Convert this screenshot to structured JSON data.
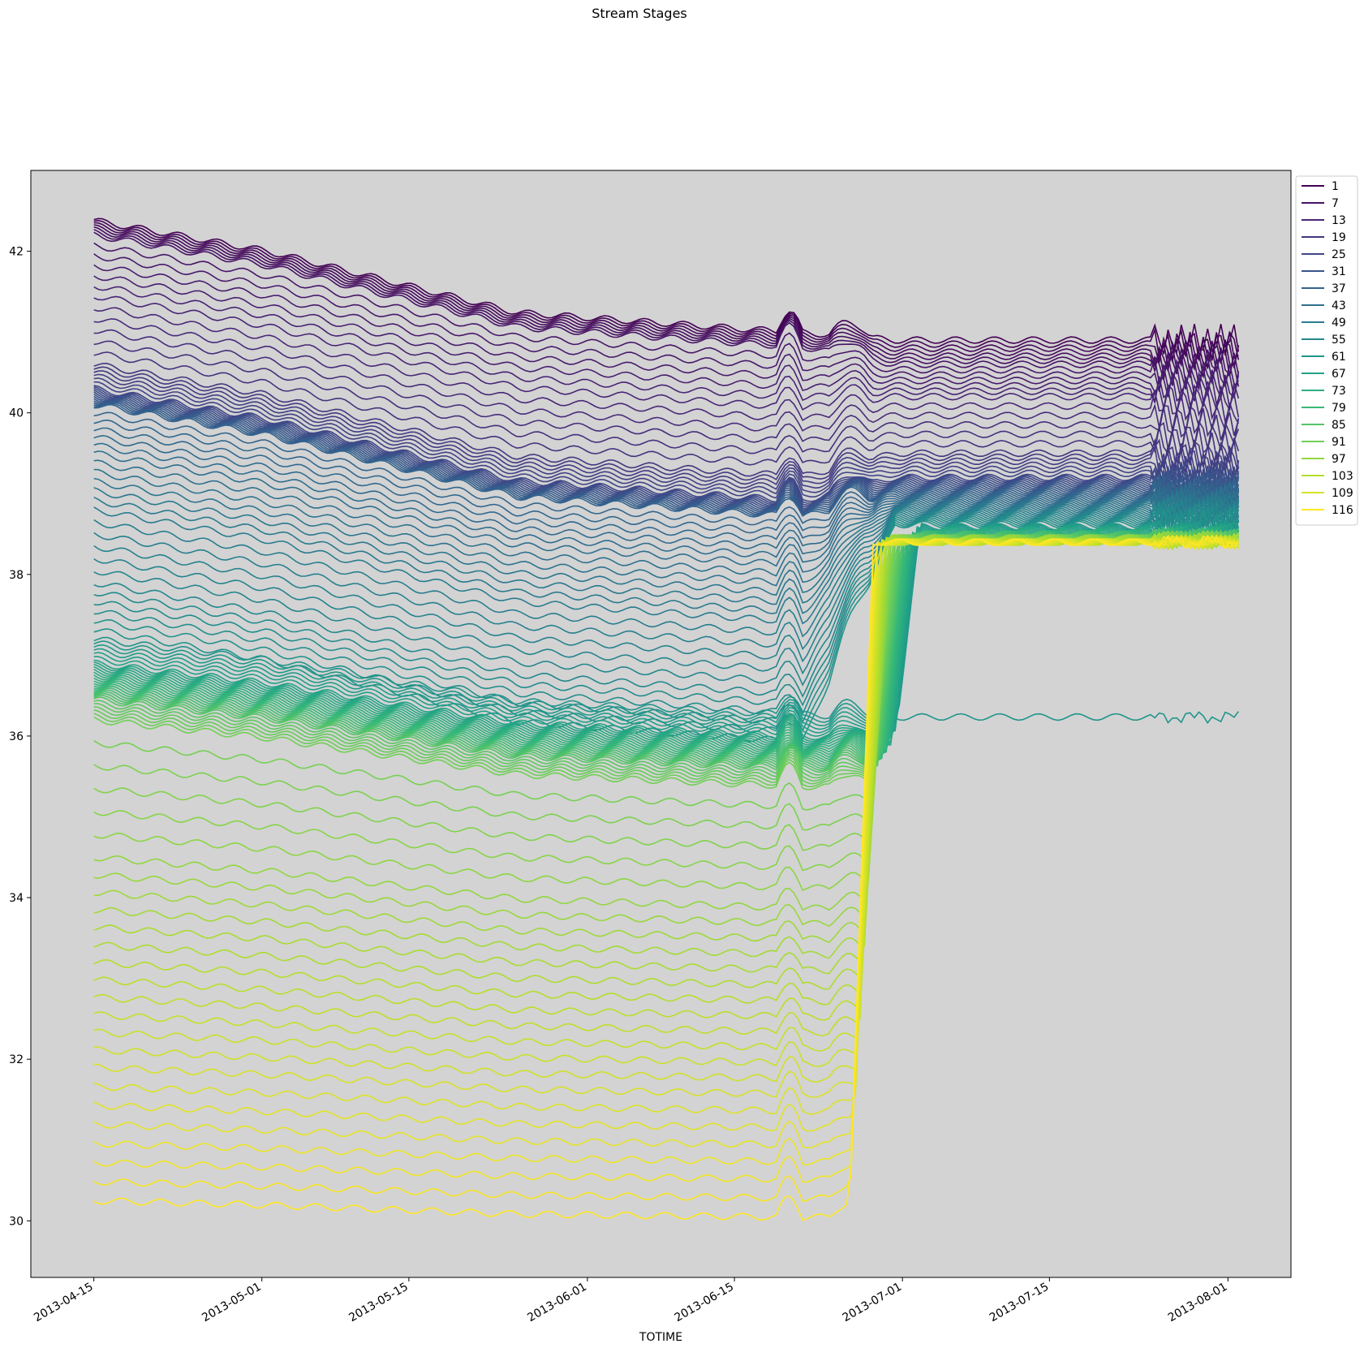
{
  "chart_data": {
    "type": "line",
    "title": "Stream Stages",
    "xlabel": "TOTIME",
    "ylabel": "",
    "x_ticks": [
      "2013-04-15",
      "2013-05-01",
      "2013-05-15",
      "2013-06-01",
      "2013-06-15",
      "2013-07-01",
      "2013-07-15",
      "2013-08-01"
    ],
    "x_range": [
      "2013-04-09",
      "2013-08-07"
    ],
    "y_ticks": [
      30,
      32,
      34,
      36,
      38,
      40,
      42
    ],
    "ylim": [
      29.3,
      43.0
    ],
    "grid": false,
    "plot_background": "#d3d3d3",
    "colormap": "viridis",
    "legend": {
      "placement": "outside top-right",
      "entries": [
        "1",
        "7",
        "13",
        "19",
        "25",
        "31",
        "37",
        "43",
        "49",
        "55",
        "61",
        "67",
        "73",
        "79",
        "85",
        "91",
        "97",
        "103",
        "109",
        "116"
      ]
    },
    "series_count": 116,
    "series_start_date": "2013-04-15",
    "series_end_date": "2013-08-02",
    "series": [
      {
        "name": "1",
        "start": 42.38,
        "end": 40.9
      },
      {
        "name": "7",
        "start": 42.2,
        "end": 40.6
      },
      {
        "name": "13",
        "start": 41.45,
        "end": 40.2
      },
      {
        "name": "19",
        "start": 40.6,
        "end": 39.5
      },
      {
        "name": "25",
        "start": 40.3,
        "end": 39.2
      },
      {
        "name": "31",
        "start": 40.2,
        "end": 39.1
      },
      {
        "name": "37",
        "start": 40.1,
        "end": 39.0
      },
      {
        "name": "43",
        "start": 39.5,
        "end": 38.9
      },
      {
        "name": "49",
        "start": 38.8,
        "end": 38.8
      },
      {
        "name": "55",
        "start": 37.9,
        "end": 38.7
      },
      {
        "name": "61",
        "start": 37.2,
        "end": 38.6
      },
      {
        "name": "67",
        "start": 36.9,
        "end": 38.55
      },
      {
        "name": "73",
        "start": 36.75,
        "end": 38.5
      },
      {
        "name": "79",
        "start": 36.6,
        "end": 38.5
      },
      {
        "name": "85",
        "start": 36.45,
        "end": 38.45
      },
      {
        "name": "91",
        "start": 36.2,
        "end": 38.45
      },
      {
        "name": "97",
        "start": 34.5,
        "end": 38.45
      },
      {
        "name": "103",
        "start": 33.2,
        "end": 38.4
      },
      {
        "name": "109",
        "start": 31.9,
        "end": 38.4
      },
      {
        "name": "116",
        "start": 30.25,
        "end": 38.4
      }
    ]
  }
}
